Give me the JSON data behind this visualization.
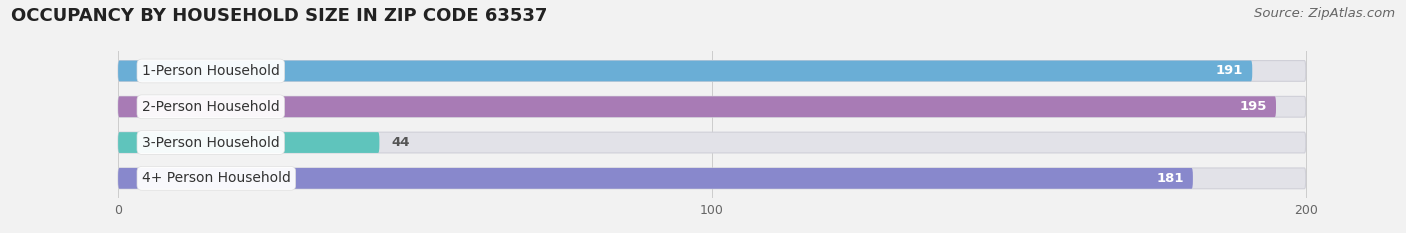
{
  "title": "OCCUPANCY BY HOUSEHOLD SIZE IN ZIP CODE 63537",
  "source": "Source: ZipAtlas.com",
  "categories": [
    "1-Person Household",
    "2-Person Household",
    "3-Person Household",
    "4+ Person Household"
  ],
  "values": [
    191,
    195,
    44,
    181
  ],
  "bar_colors": [
    "#6AAED6",
    "#A87BB5",
    "#5FC4BC",
    "#8888CC"
  ],
  "xlim_data": [
    0,
    200
  ],
  "xlim_display": [
    -18,
    215
  ],
  "xticks": [
    0,
    100,
    200
  ],
  "background_color": "#f2f2f2",
  "bar_bg_color": "#e2e2e8",
  "bar_bg_edge_color": "#d0d0d8",
  "title_fontsize": 13,
  "source_fontsize": 9.5,
  "label_fontsize": 10,
  "value_fontsize": 9.5,
  "bar_height": 0.58,
  "bar_sep": 0.18
}
